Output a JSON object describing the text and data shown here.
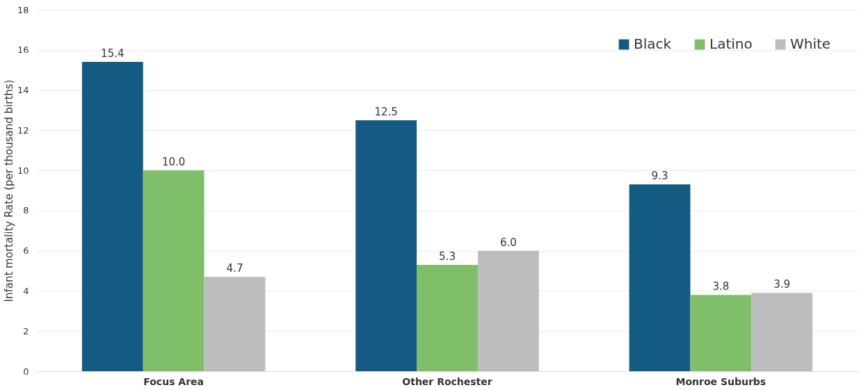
{
  "chart_data": {
    "type": "bar",
    "ylabel": "Infant mortality Rate (per thousand births)",
    "categories": [
      "Focus Area",
      "Other Rochester",
      "Monroe Suburbs"
    ],
    "series": [
      {
        "name": "Black",
        "color": "#135b82",
        "values": [
          15.4,
          12.5,
          9.3
        ],
        "value_labels": [
          "15.4",
          "12.5",
          "9.3"
        ]
      },
      {
        "name": "Latino",
        "color": "#7fbf6a",
        "values": [
          10.0,
          5.3,
          3.8
        ],
        "value_labels": [
          "10.0",
          "5.3",
          "3.8"
        ]
      },
      {
        "name": "White",
        "color": "#bdbdbf",
        "values": [
          4.7,
          6.0,
          3.9
        ],
        "value_labels": [
          "4.7",
          "6.0",
          "3.9"
        ]
      }
    ],
    "ylim": [
      0,
      18
    ],
    "yticks": [
      0,
      2,
      4,
      6,
      8,
      10,
      12,
      14,
      16,
      18
    ],
    "grid": "y",
    "legend": "top right"
  }
}
